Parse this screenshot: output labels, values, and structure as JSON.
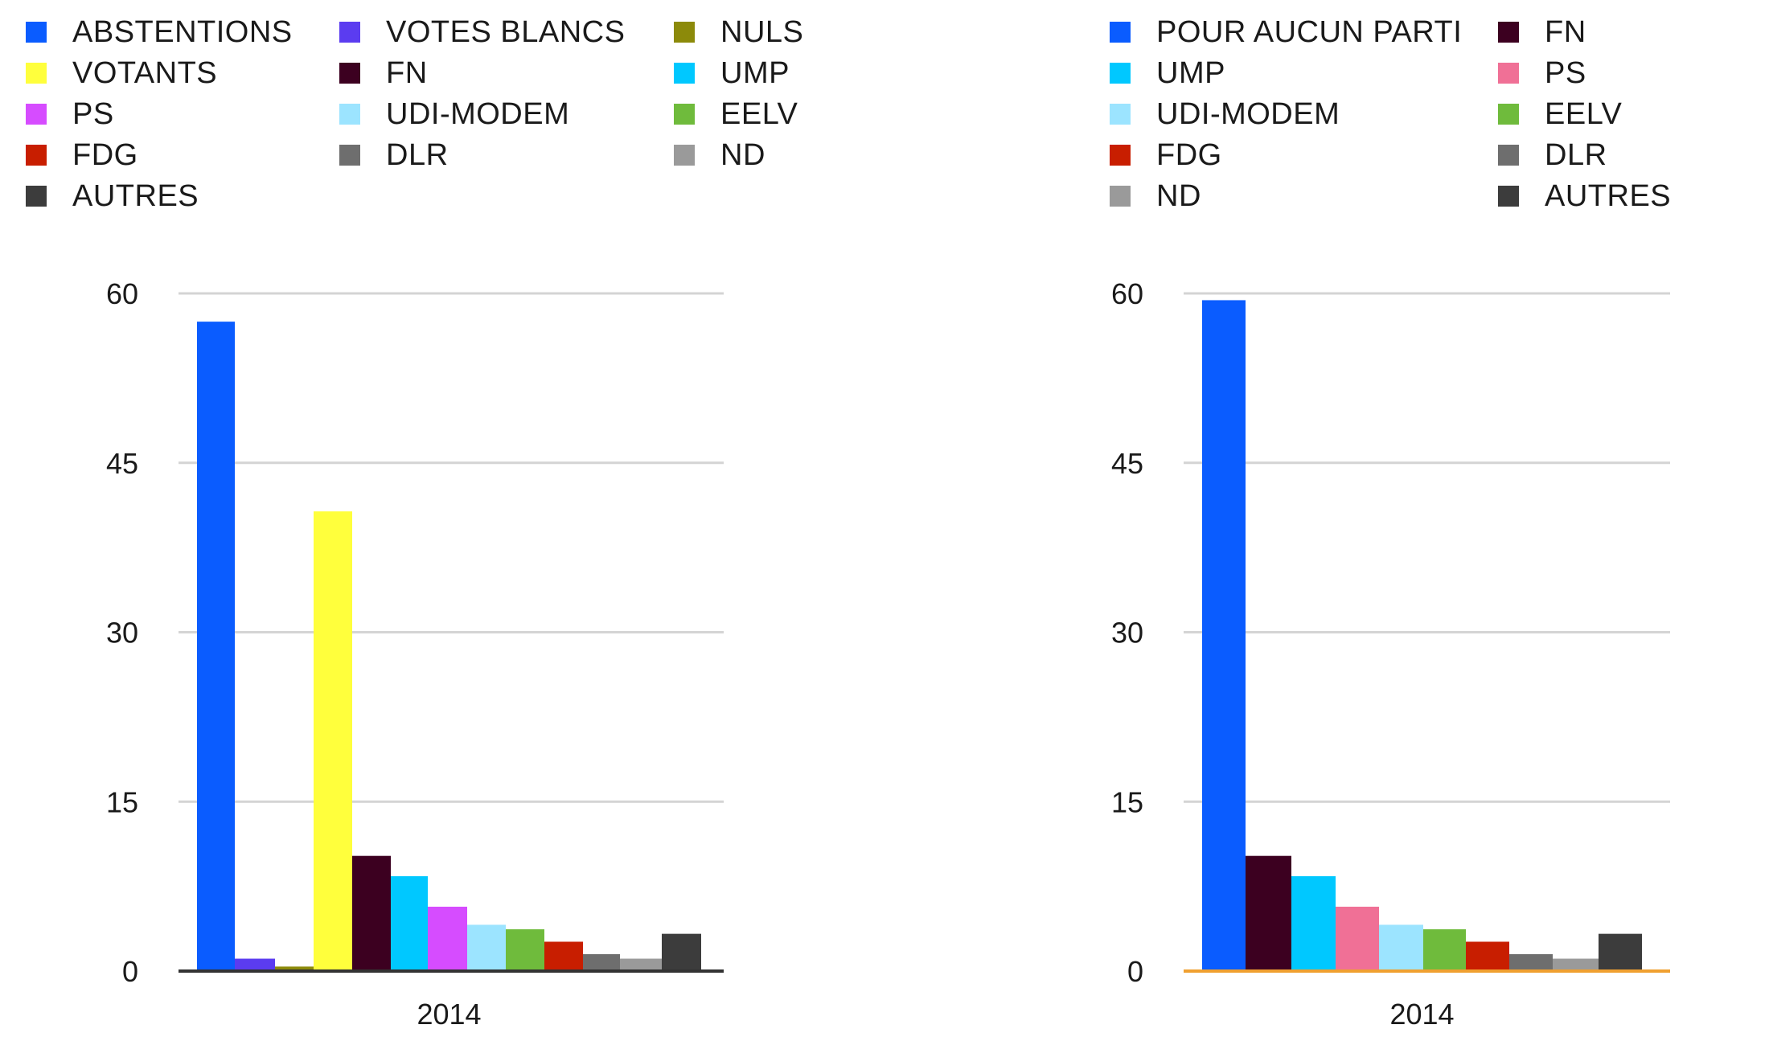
{
  "chart_data": [
    {
      "type": "bar",
      "categories": [
        "2014"
      ],
      "xlabel": "",
      "ylabel": "",
      "ylim": [
        0,
        60
      ],
      "yticks": [
        "0",
        "15",
        "30",
        "45",
        "60"
      ],
      "grid": true,
      "legend_position": "top",
      "series": [
        {
          "name": "ABSTENTIONS",
          "values": [
            57.5
          ],
          "color": "#0a5cff"
        },
        {
          "name": "VOTES BLANCS",
          "values": [
            1.1
          ],
          "color": "#5b3cf0"
        },
        {
          "name": "NULS",
          "values": [
            0.4
          ],
          "color": "#8c8a0a"
        },
        {
          "name": "VOTANTS",
          "values": [
            40.7
          ],
          "color": "#ffff3c"
        },
        {
          "name": "FN",
          "values": [
            10.2
          ],
          "color": "#3c0020"
        },
        {
          "name": "UMP",
          "values": [
            8.4
          ],
          "color": "#00c8ff"
        },
        {
          "name": "PS",
          "values": [
            5.7
          ],
          "color": "#d64cff"
        },
        {
          "name": "UDI-MODEM",
          "values": [
            4.1
          ],
          "color": "#9ce4ff"
        },
        {
          "name": "EELV",
          "values": [
            3.7
          ],
          "color": "#6fbb3c"
        },
        {
          "name": "FDG",
          "values": [
            2.6
          ],
          "color": "#c81e00"
        },
        {
          "name": "DLR",
          "values": [
            1.5
          ],
          "color": "#6e6e6e"
        },
        {
          "name": "ND",
          "values": [
            1.1
          ],
          "color": "#9a9a9a"
        },
        {
          "name": "AUTRES",
          "values": [
            3.3
          ],
          "color": "#3c3c3c"
        }
      ]
    },
    {
      "type": "bar",
      "categories": [
        "2014"
      ],
      "xlabel": "",
      "ylabel": "",
      "ylim": [
        0,
        60
      ],
      "yticks": [
        "0",
        "15",
        "30",
        "45",
        "60"
      ],
      "grid": true,
      "legend_position": "top",
      "series": [
        {
          "name": "POUR AUCUN PARTI",
          "values": [
            59.4
          ],
          "color": "#0a5cff"
        },
        {
          "name": "FN",
          "values": [
            10.2
          ],
          "color": "#3c0020"
        },
        {
          "name": "UMP",
          "values": [
            8.4
          ],
          "color": "#00c8ff"
        },
        {
          "name": "PS",
          "values": [
            5.7
          ],
          "color": "#f07096"
        },
        {
          "name": "UDI-MODEM",
          "values": [
            4.1
          ],
          "color": "#9ce4ff"
        },
        {
          "name": "EELV",
          "values": [
            3.7
          ],
          "color": "#6fbb3c"
        },
        {
          "name": "FDG",
          "values": [
            2.6
          ],
          "color": "#c81e00"
        },
        {
          "name": "DLR",
          "values": [
            1.5
          ],
          "color": "#6e6e6e"
        },
        {
          "name": "ND",
          "values": [
            1.1
          ],
          "color": "#9a9a9a"
        },
        {
          "name": "AUTRES",
          "values": [
            3.3
          ],
          "color": "#3c3c3c"
        }
      ]
    }
  ]
}
